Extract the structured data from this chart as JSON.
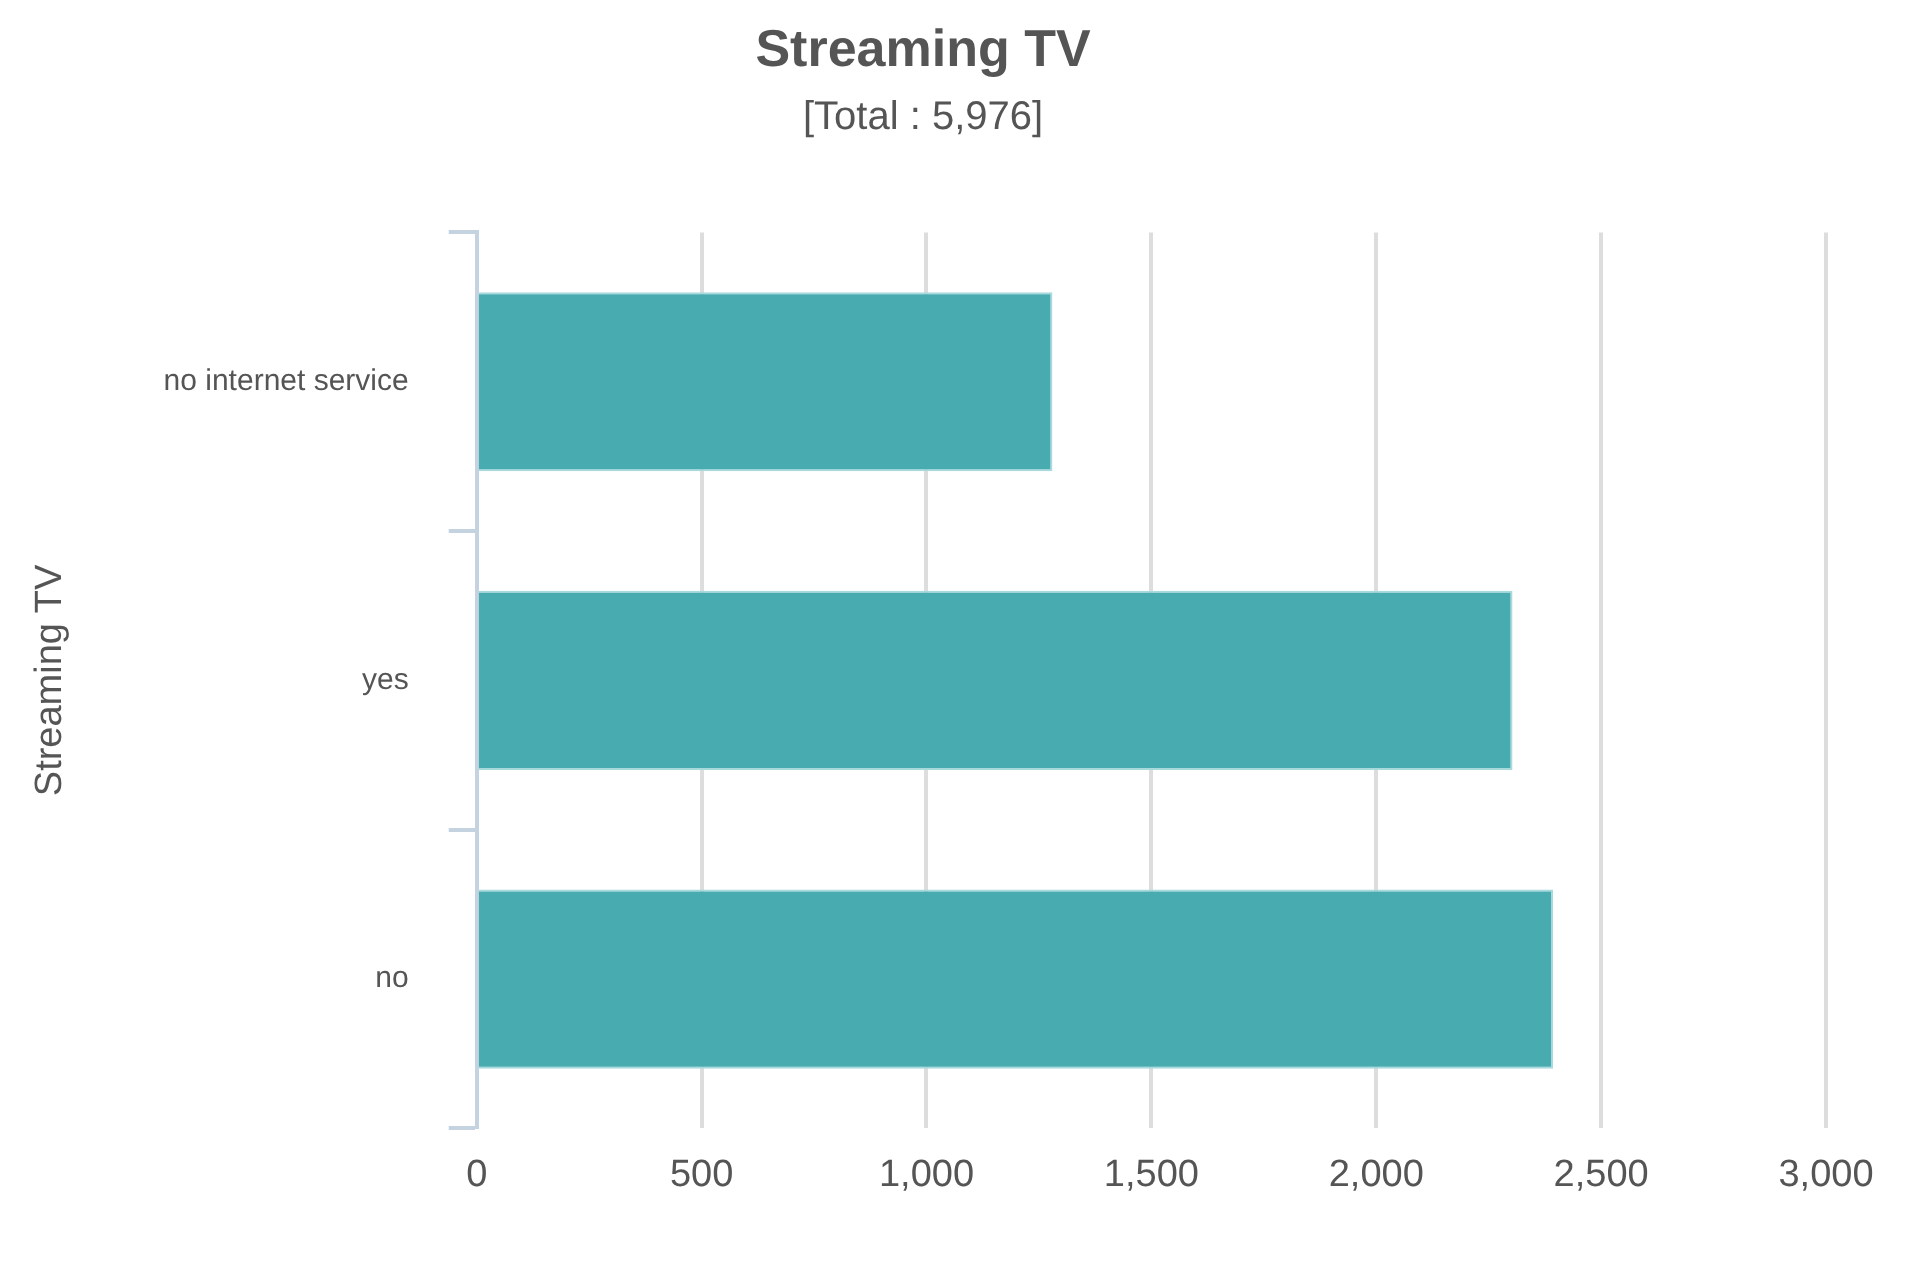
{
  "chart_data": {
    "type": "bar",
    "orientation": "horizontal",
    "title": "Streaming TV",
    "subtitle": "[Total : 5,976]",
    "ylabel": "Streaming TV",
    "categories": [
      "no internet service",
      "yes",
      "no"
    ],
    "values": [
      1280,
      2303,
      2393
    ],
    "color": "#48abb0",
    "xlim": [
      0,
      3000
    ],
    "xticks": [
      {
        "value": 0,
        "label": "0"
      },
      {
        "value": 500,
        "label": "500"
      },
      {
        "value": 1000,
        "label": "1,000"
      },
      {
        "value": 1500,
        "label": "1,500"
      },
      {
        "value": 2000,
        "label": "2,000"
      },
      {
        "value": 2500,
        "label": "2,500"
      },
      {
        "value": 3000,
        "label": "3,000"
      }
    ],
    "grid": "x",
    "legend": false
  }
}
